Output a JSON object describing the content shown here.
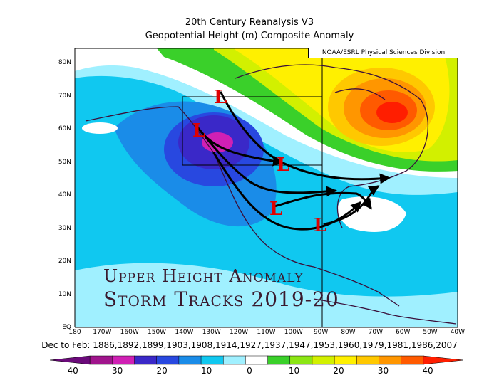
{
  "title_line1": "20th Century Reanalysis V3",
  "title_line2": "Geopotential Height (m) Composite Anomaly",
  "credit": "NOAA/ESRL Physical Sciences Division",
  "overlay_line1": "Upper Height Anomaly",
  "overlay_line2": "Storm Tracks 2019-20",
  "period_text": "Dec to Feb: 1886,1892,1899,1903,1908,1914,1927,1937,1947,1953,1960,1979,1981,1986,2007",
  "lat_labels": [
    "80N",
    "70N",
    "60N",
    "50N",
    "40N",
    "30N",
    "20N",
    "10N",
    "EQ"
  ],
  "lon_labels": [
    "180",
    "170W",
    "160W",
    "150W",
    "140W",
    "130W",
    "120W",
    "110W",
    "100W",
    "90W",
    "80W",
    "70W",
    "60W",
    "50W",
    "40W"
  ],
  "low_marker": "L",
  "colorbar": {
    "labels": [
      "-40",
      "-30",
      "-20",
      "-10",
      "0",
      "10",
      "20",
      "30",
      "40"
    ],
    "colors": [
      "#6b0a7a",
      "#a0148c",
      "#d020b4",
      "#3a28c8",
      "#2848e0",
      "#1a8ce8",
      "#10c8f0",
      "#a0f0ff",
      "#ffffff",
      "#3ad02a",
      "#8ce614",
      "#d2f000",
      "#fff000",
      "#ffc800",
      "#ff9600",
      "#ff5a00",
      "#ff1e00"
    ]
  }
}
